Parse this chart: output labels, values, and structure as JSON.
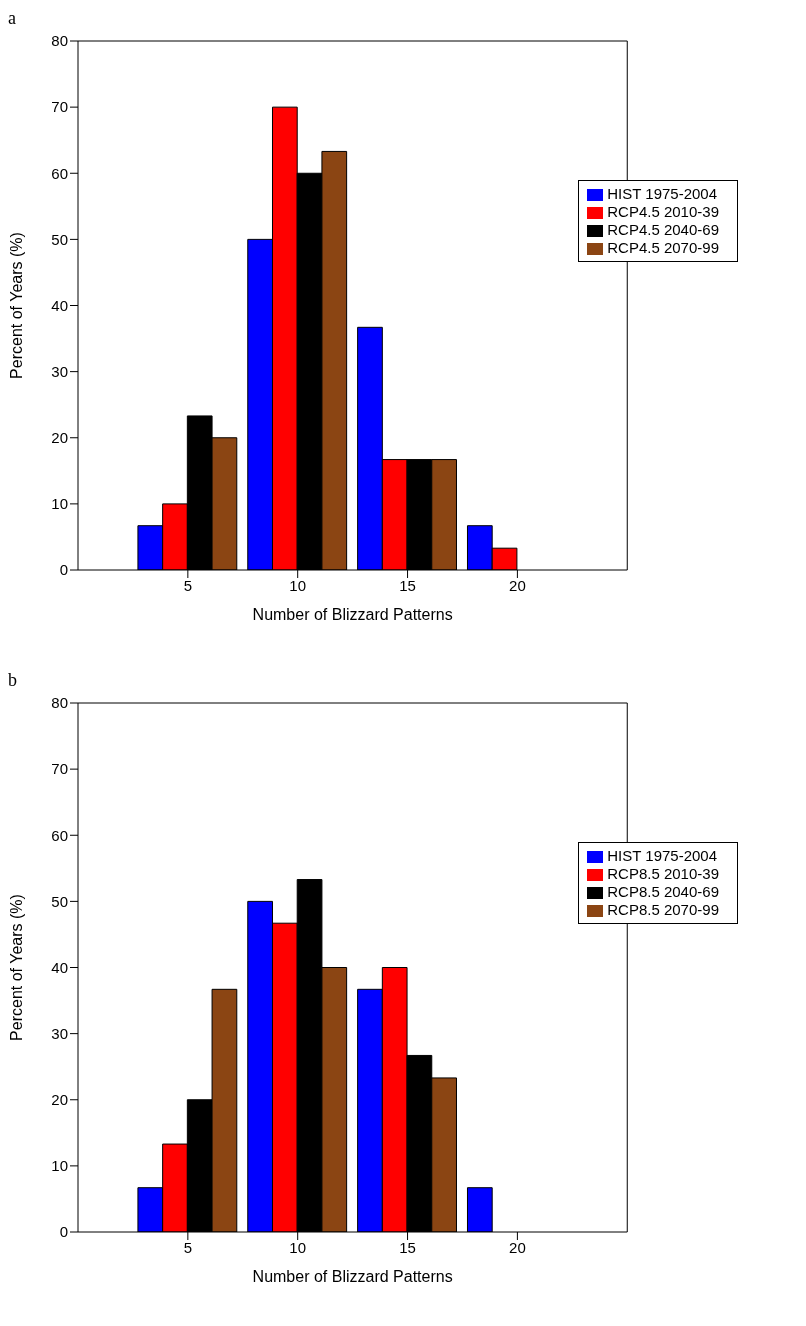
{
  "chart_data": [
    {
      "type": "bar",
      "title": "a",
      "xlabel": "Number of Blizzard Patterns",
      "ylabel": "Percent of Years (%)",
      "x": [
        5,
        10,
        15,
        20
      ],
      "xlim": [
        0,
        25
      ],
      "xticks": [
        5,
        10,
        15,
        20
      ],
      "ylim": [
        0,
        80
      ],
      "yticks": [
        0,
        10,
        20,
        30,
        40,
        50,
        60,
        70,
        80
      ],
      "legend": "right",
      "series": [
        {
          "name": "HIST 1975-2004",
          "color": "#0000ff",
          "values": [
            6.7,
            50,
            36.7,
            6.7
          ]
        },
        {
          "name": "RCP4.5 2010-39",
          "color": "#ff0000",
          "values": [
            10,
            70,
            16.7,
            3.3
          ]
        },
        {
          "name": "RCP4.5 2040-69",
          "color": "#000000",
          "values": [
            23.3,
            60,
            16.7,
            0
          ]
        },
        {
          "name": "RCP4.5 2070-99",
          "color": "#8b4513",
          "values": [
            20,
            63.3,
            16.7,
            0
          ]
        }
      ]
    },
    {
      "type": "bar",
      "title": "b",
      "xlabel": "Number of Blizzard Patterns",
      "ylabel": "Percent of Years (%)",
      "x": [
        5,
        10,
        15,
        20
      ],
      "xlim": [
        0,
        25
      ],
      "xticks": [
        5,
        10,
        15,
        20
      ],
      "ylim": [
        0,
        80
      ],
      "yticks": [
        0,
        10,
        20,
        30,
        40,
        50,
        60,
        70,
        80
      ],
      "legend": "right",
      "series": [
        {
          "name": "HIST 1975-2004",
          "color": "#0000ff",
          "values": [
            6.7,
            50,
            36.7,
            6.7
          ]
        },
        {
          "name": "RCP8.5 2010-39",
          "color": "#ff0000",
          "values": [
            13.3,
            46.7,
            40,
            0
          ]
        },
        {
          "name": "RCP8.5 2040-69",
          "color": "#000000",
          "values": [
            20,
            53.3,
            26.7,
            0
          ]
        },
        {
          "name": "RCP8.5 2070-99",
          "color": "#8b4513",
          "values": [
            36.7,
            40,
            23.3,
            0
          ]
        }
      ]
    }
  ]
}
